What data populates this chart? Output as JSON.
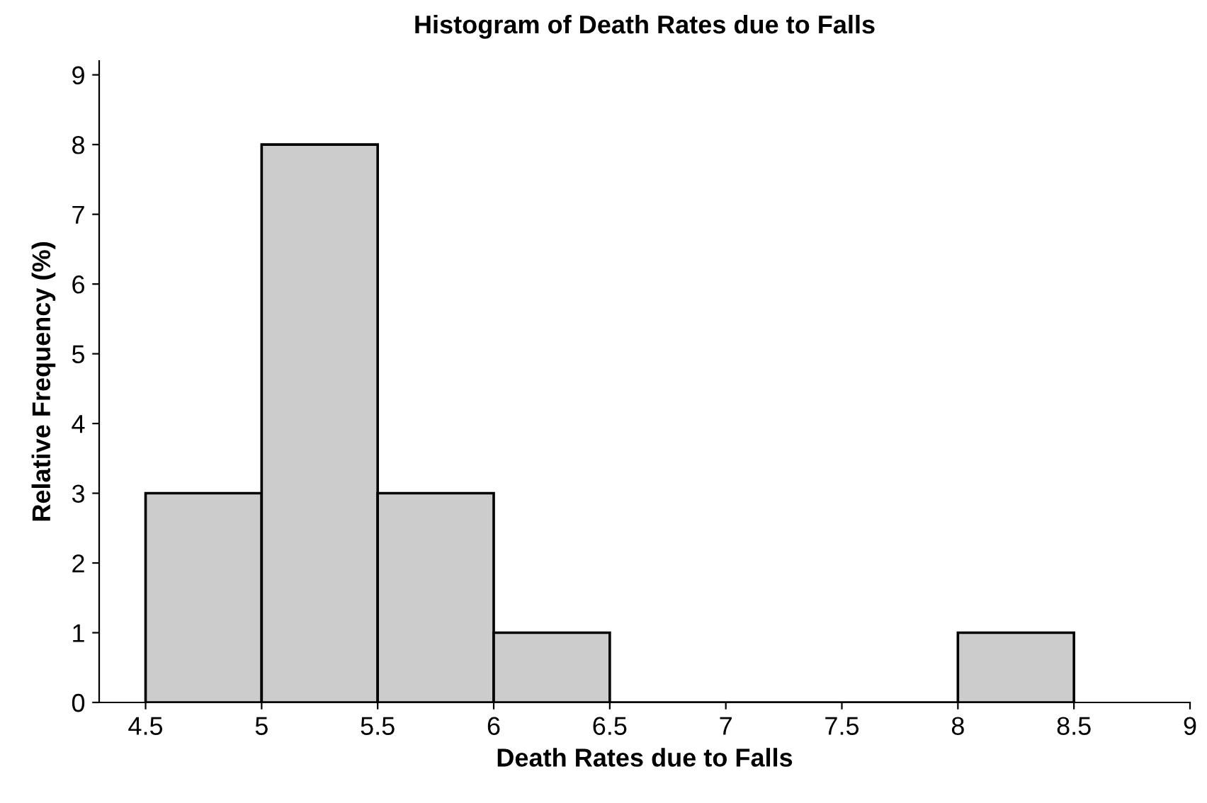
{
  "chart_data": {
    "type": "histogram",
    "title": "Histogram of Death Rates due to Falls",
    "xlabel": "Death Rates due to Falls",
    "ylabel": "Relative Frequency (%)",
    "bins": [
      4.5,
      5,
      5.5,
      6,
      6.5,
      7,
      7.5,
      8,
      8.5
    ],
    "values": [
      3,
      8,
      3,
      1,
      0,
      0,
      0,
      1
    ],
    "color": "#cccccc",
    "xlim": [
      4.3,
      9
    ],
    "xticks": [
      4.5,
      5,
      5.5,
      6,
      6.5,
      7,
      7.5,
      8,
      8.5,
      9
    ],
    "ylim": [
      0,
      9.2
    ],
    "yticks": [
      0,
      1,
      2,
      3,
      4,
      5,
      6,
      7,
      8,
      9
    ],
    "grid": false
  }
}
